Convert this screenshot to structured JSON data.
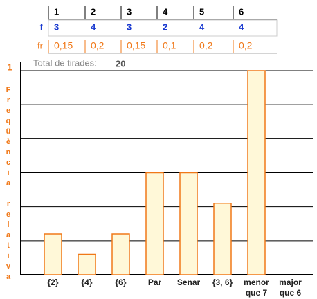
{
  "table": {
    "header": [
      1,
      2,
      3,
      4,
      5,
      6
    ],
    "rows": [
      {
        "label": "f",
        "values": [
          3,
          4,
          3,
          2,
          4,
          4
        ]
      },
      {
        "label": "fr",
        "values": [
          "0,15",
          "0,2",
          "0,15",
          "0,1",
          "0,2",
          "0,2"
        ]
      }
    ]
  },
  "total": {
    "label": "Total de tirades:",
    "value": 20
  },
  "chart_data": {
    "type": "bar",
    "ylabel": "Freqüència relativa",
    "categories": [
      "{2}",
      "{4}",
      "{6}",
      "Par",
      "Senar",
      "{3, 6}",
      "menor que 7",
      "major que 6"
    ],
    "values": [
      0.2,
      0.1,
      0.2,
      0.5,
      0.5,
      0.35,
      1,
      0
    ],
    "color": "#f07818",
    "fill": "#fff8d8",
    "ylim": [
      0,
      1
    ],
    "yticks": [
      1
    ],
    "grid": [
      0.1667,
      0.3333,
      0.5,
      0.6667,
      0.8333,
      1
    ]
  }
}
